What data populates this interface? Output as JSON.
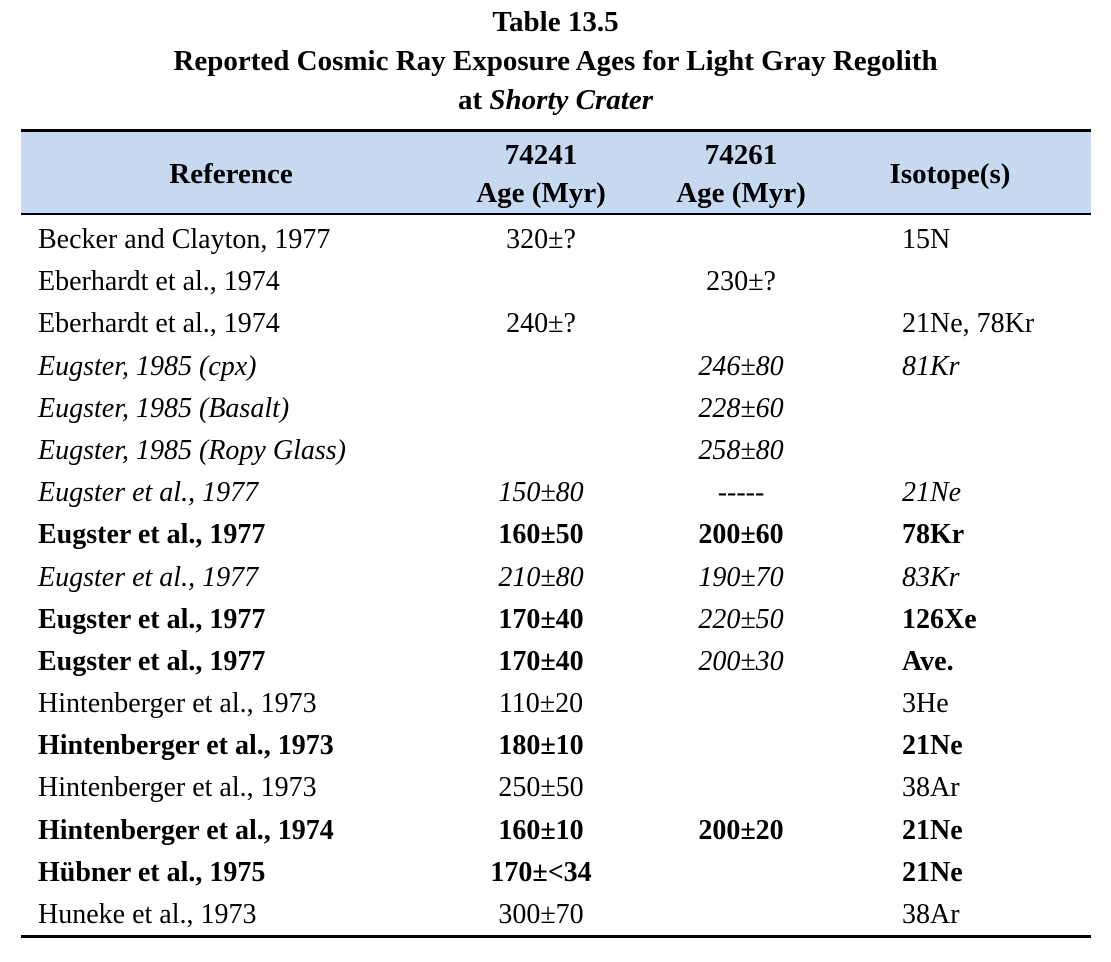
{
  "caption": {
    "line1": "Table 13.5",
    "line2": "Reported Cosmic Ray Exposure Ages for Light Gray Regolith",
    "line3_prefix": "at ",
    "line3_italic": "Shorty Crater"
  },
  "colors": {
    "header_band": "#c6d9f1",
    "rules": "#000000"
  },
  "headers": {
    "reference": "Reference",
    "col_74241_top": "74241",
    "col_74241_bottom": "Age (Myr)",
    "col_74261_top": "74261",
    "col_74261_bottom": "Age (Myr)",
    "isotopes": "Isotope(s)"
  },
  "rows": [
    {
      "style": "normal",
      "reference": "Becker and Clayton, 1977",
      "age_74241": "320±?",
      "age_74261": "",
      "isotopes": "15N"
    },
    {
      "style": "normal",
      "reference": "Eberhardt et al., 1974",
      "age_74241": "",
      "age_74261": "230±?",
      "isotopes": ""
    },
    {
      "style": "normal",
      "reference": "Eberhardt et al., 1974",
      "age_74241": "240±?",
      "age_74261": "",
      "isotopes": "21Ne, 78Kr"
    },
    {
      "style": "italic",
      "reference": "Eugster, 1985 (cpx)",
      "age_74241": "",
      "age_74261": "246±80",
      "isotopes": "81Kr"
    },
    {
      "style": "italic",
      "reference": "Eugster, 1985 (Basalt)",
      "age_74241": "",
      "age_74261": "228±60",
      "isotopes": ""
    },
    {
      "style": "italic",
      "reference": "Eugster, 1985 (Ropy Glass)",
      "age_74241": "",
      "age_74261": "258±80",
      "isotopes": ""
    },
    {
      "style": "italic",
      "reference": "Eugster et al., 1977",
      "age_74241": "150±80",
      "age_74261": "-----",
      "isotopes": "21Ne"
    },
    {
      "style": "bold",
      "reference": "Eugster et al., 1977",
      "age_74241": "160±50",
      "age_74261": "200±60",
      "isotopes": "78Kr"
    },
    {
      "style": "italic",
      "reference": "Eugster et al., 1977",
      "age_74241": "210±80",
      "age_74261": "190±70",
      "isotopes": "83Kr"
    },
    {
      "style": "bold",
      "reference": "Eugster et al., 1977",
      "age_74241": "170±40",
      "age_74261": "220±50",
      "age_74261_italic": true,
      "isotopes": "126Xe"
    },
    {
      "style": "bold",
      "reference": "Eugster et al., 1977",
      "age_74241": "170±40",
      "age_74261": "200±30",
      "age_74261_italic": true,
      "isotopes": "Ave."
    },
    {
      "style": "normal",
      "reference": "Hintenberger et al., 1973",
      "age_74241": "110±20",
      "age_74261": "",
      "isotopes": "3He"
    },
    {
      "style": "bold",
      "reference": "Hintenberger et al., 1973",
      "age_74241": "180±10",
      "age_74261": "",
      "isotopes": "21Ne"
    },
    {
      "style": "normal",
      "reference": "Hintenberger et al., 1973",
      "age_74241": "250±50",
      "age_74261": "",
      "isotopes": "38Ar"
    },
    {
      "style": "bold",
      "reference": "Hintenberger et al., 1974",
      "age_74241": "160±10",
      "age_74261": "200±20",
      "isotopes": "21Ne"
    },
    {
      "style": "bold",
      "reference": "Hübner et al., 1975",
      "age_74241": "170±<34",
      "age_74261": "",
      "isotopes": "21Ne"
    },
    {
      "style": "normal",
      "reference": "Huneke et al., 1973",
      "age_74241": "300±70",
      "age_74261": "",
      "isotopes": "38Ar"
    }
  ]
}
